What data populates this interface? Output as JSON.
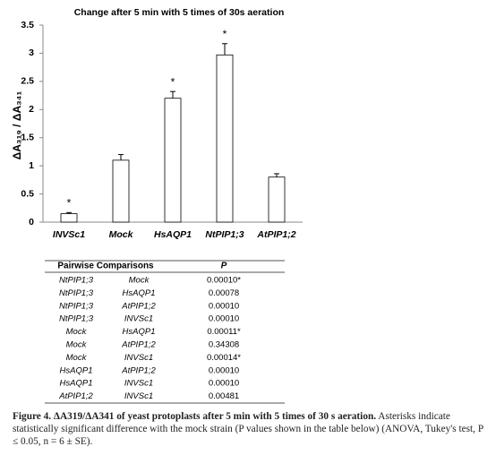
{
  "chart_data": {
    "type": "bar",
    "title": "Change after 5 min with 5 times of 30s aeration",
    "y_label": "ΔA₃₁₉ / ΔA₃₄₁",
    "categories": [
      "INVSc1",
      "Mock",
      "HsAQP1",
      "NtPIP1;3",
      "AtPIP1;2"
    ],
    "values": [
      0.15,
      1.1,
      2.2,
      2.97,
      0.8
    ],
    "errors": [
      0.02,
      0.1,
      0.12,
      0.2,
      0.06
    ],
    "annotations": [
      {
        "category": "INVSc1",
        "text": "*"
      },
      {
        "category": "HsAQP1",
        "text": "*"
      },
      {
        "category": "NtPIP1;3",
        "text": "*"
      }
    ],
    "color": "#ffffff",
    "ylim": [
      0,
      3.5
    ],
    "yticks": [
      0,
      0.5,
      1,
      1.5,
      2,
      2.5,
      3,
      3.5
    ],
    "grid": false
  },
  "table": {
    "header": [
      "Pairwise Comparisons",
      "P"
    ],
    "rows": [
      [
        "NtPIP1;3",
        "Mock",
        "0.00010*"
      ],
      [
        "NtPIP1;3",
        "HsAQP1",
        "0.00078"
      ],
      [
        "NtPIP1;3",
        "AtPIP1;2",
        "0.00010"
      ],
      [
        "NtPIP1;3",
        "INVSc1",
        "0.00010"
      ],
      [
        "Mock",
        "HsAQP1",
        "0.00011*"
      ],
      [
        "Mock",
        "AtPIP1;2",
        "0.34308"
      ],
      [
        "Mock",
        "INVSc1",
        "0.00014*"
      ],
      [
        "HsAQP1",
        "AtPIP1;2",
        "0.00010"
      ],
      [
        "HsAQP1",
        "INVSc1",
        "0.00010"
      ],
      [
        "AtPIP1;2",
        "INVSc1",
        "0.00481"
      ]
    ]
  },
  "caption": {
    "title": "Figure 4.  ΔA319/ΔA341 of yeast protoplasts after 5 min with 5 times of 30 s aeration.",
    "text": "Asterisks indicate statistically significant difference with the mock strain (P values shown in the table below) (ANOVA, Tukey's test, P ≤ 0.05, n = 6 ± SE)."
  }
}
